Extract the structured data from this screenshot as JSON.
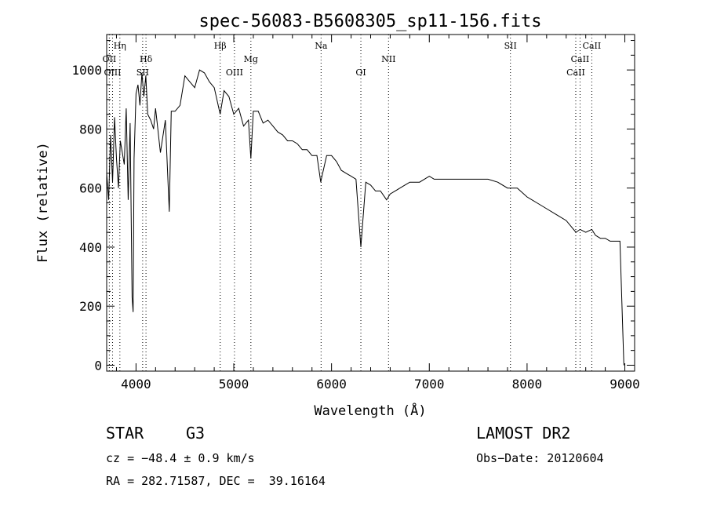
{
  "chart_data": {
    "type": "line",
    "title": "spec-56083-B5608305_sp11-156.fits",
    "xlabel": "Wavelength (Å)",
    "ylabel": "Flux (relative)",
    "xlim": [
      3700,
      9100
    ],
    "ylim": [
      -20,
      1120
    ],
    "xticks": [
      4000,
      5000,
      6000,
      7000,
      8000,
      9000
    ],
    "yticks": [
      0,
      200,
      400,
      600,
      800,
      1000
    ],
    "grid": false,
    "series": [
      {
        "x": [
          3700,
          3720,
          3740,
          3760,
          3780,
          3800,
          3820,
          3840,
          3860,
          3880,
          3900,
          3920,
          3940,
          3960,
          3970,
          3980,
          4000,
          4020,
          4040,
          4060,
          4080,
          4100,
          4120,
          4150,
          4180,
          4200,
          4250,
          4300,
          4340,
          4360,
          4400,
          4450,
          4500,
          4550,
          4600,
          4650,
          4700,
          4750,
          4800,
          4861,
          4900,
          4950,
          5000,
          5050,
          5100,
          5150,
          5175,
          5200,
          5250,
          5300,
          5350,
          5400,
          5450,
          5500,
          5550,
          5600,
          5650,
          5700,
          5750,
          5800,
          5850,
          5890,
          5895,
          5950,
          6000,
          6050,
          6100,
          6150,
          6200,
          6250,
          6300,
          6350,
          6400,
          6450,
          6500,
          6563,
          6600,
          6650,
          6700,
          6750,
          6800,
          6850,
          6900,
          6950,
          7000,
          7050,
          7100,
          7200,
          7300,
          7400,
          7500,
          7600,
          7700,
          7800,
          7900,
          8000,
          8100,
          8200,
          8300,
          8400,
          8450,
          8500,
          8542,
          8600,
          8662,
          8700,
          8750,
          8800,
          8850,
          8900,
          8950,
          8990
        ],
        "y": [
          650,
          560,
          780,
          620,
          840,
          700,
          600,
          760,
          720,
          680,
          870,
          560,
          820,
          230,
          180,
          700,
          920,
          950,
          880,
          990,
          910,
          980,
          850,
          830,
          800,
          870,
          720,
          830,
          520,
          860,
          860,
          880,
          980,
          960,
          940,
          1000,
          990,
          960,
          940,
          850,
          930,
          910,
          850,
          870,
          810,
          830,
          700,
          860,
          860,
          820,
          830,
          810,
          790,
          780,
          760,
          760,
          750,
          730,
          730,
          710,
          710,
          620,
          630,
          710,
          710,
          690,
          660,
          650,
          640,
          630,
          400,
          620,
          610,
          590,
          590,
          560,
          580,
          590,
          600,
          610,
          620,
          620,
          620,
          630,
          640,
          630,
          630,
          630,
          630,
          630,
          630,
          630,
          620,
          600,
          600,
          570,
          550,
          530,
          510,
          490,
          470,
          450,
          460,
          450,
          460,
          440,
          430,
          430,
          420,
          420,
          420,
          0
        ]
      }
    ],
    "line_labels": [
      {
        "name": "Hη",
        "wavelength": 3835,
        "row": 1
      },
      {
        "name": "OII",
        "wavelength": 3727,
        "row": 2
      },
      {
        "name": "OIII",
        "wavelength": 3760,
        "row": 3
      },
      {
        "name": "Hδ",
        "wavelength": 4102,
        "row": 2
      },
      {
        "name": "SII",
        "wavelength": 4068,
        "row": 3
      },
      {
        "name": "Hβ",
        "wavelength": 4861,
        "row": 1
      },
      {
        "name": "Mg",
        "wavelength": 5175,
        "row": 2
      },
      {
        "name": "OIII",
        "wavelength": 5007,
        "row": 3
      },
      {
        "name": "Na",
        "wavelength": 5893,
        "row": 1
      },
      {
        "name": "OI",
        "wavelength": 6300,
        "row": 3
      },
      {
        "name": "NII",
        "wavelength": 6583,
        "row": 2
      },
      {
        "name": "SII",
        "wavelength": 7830,
        "row": 1
      },
      {
        "name": "CaII",
        "wavelength": 8662,
        "row": 1
      },
      {
        "name": "CaII",
        "wavelength": 8542,
        "row": 2
      },
      {
        "name": "CaII",
        "wavelength": 8498,
        "row": 3
      }
    ]
  },
  "info": {
    "object_class": "STAR",
    "subclass": "G3",
    "survey": "LAMOST DR2",
    "redshift_text": "cz = −48.4 ± 0.9 km/s",
    "obs_date_text": "Obs−Date: 20120604",
    "coords_text": "RA = 282.71587, DEC =  39.16164"
  }
}
